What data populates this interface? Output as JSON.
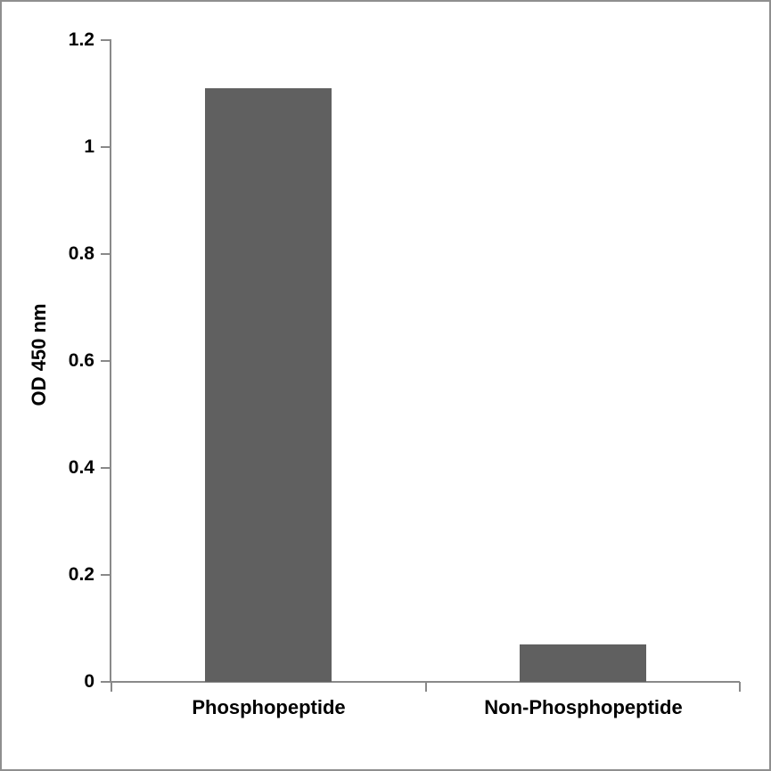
{
  "figure": {
    "background_color": "#FFFFFF",
    "border_color": "#8F8F8F"
  },
  "chart_data": {
    "type": "bar",
    "title": "",
    "xlabel": "",
    "ylabel": "OD 450 nm",
    "categories": [
      "Phosphopeptide",
      "Non-Phosphopeptide"
    ],
    "values": [
      1.11,
      0.07
    ],
    "ylim": [
      0,
      1.2
    ],
    "yticks": [
      {
        "value": 0,
        "label": "0"
      },
      {
        "value": 0.2,
        "label": "0.2"
      },
      {
        "value": 0.4,
        "label": "0.4"
      },
      {
        "value": 0.6,
        "label": "0.6"
      },
      {
        "value": 0.8,
        "label": "0.8"
      },
      {
        "value": 1,
        "label": "1"
      },
      {
        "value": 1.2,
        "label": "1.2"
      }
    ],
    "grid": false,
    "legend": null,
    "bar_color": "#606060",
    "axis_color": "#898989",
    "text_color": "#000000"
  }
}
